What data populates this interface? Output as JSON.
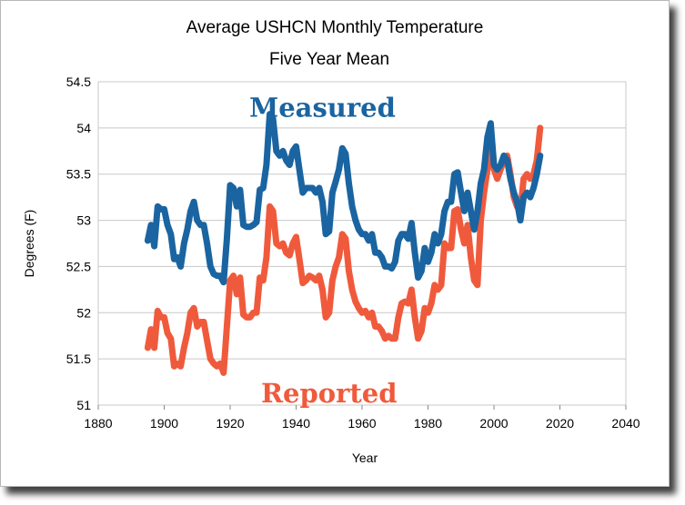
{
  "chart_data": {
    "type": "line",
    "title": "Average USHCN Monthly Temperature",
    "subtitle": "Five Year Mean",
    "xlabel": "Year",
    "ylabel": "Degrees (F)",
    "xlim": [
      1880,
      2040
    ],
    "ylim": [
      51,
      54.5
    ],
    "xticks": [
      "1880",
      "1900",
      "1920",
      "1940",
      "1960",
      "1980",
      "2000",
      "2020",
      "2040"
    ],
    "yticks": [
      "51",
      "51.5",
      "52",
      "52.5",
      "53",
      "53.5",
      "54",
      "54.5"
    ],
    "grid": true,
    "legend": "none",
    "annotations": [
      {
        "text": "Measured",
        "color": "#1a64a1",
        "x": 1948,
        "y": 54.22
      },
      {
        "text": "Reported",
        "color": "#f05a3c",
        "x": 1950,
        "y": 51.13
      }
    ],
    "series": [
      {
        "color": "#1a64a1",
        "x": [
          1895,
          1896,
          1897,
          1898,
          1899,
          1900,
          1901,
          1902,
          1903,
          1904,
          1905,
          1906,
          1907,
          1908,
          1909,
          1910,
          1911,
          1912,
          1913,
          1914,
          1915,
          1916,
          1917,
          1918,
          1919,
          1920,
          1921,
          1922,
          1923,
          1924,
          1925,
          1926,
          1927,
          1928,
          1929,
          1930,
          1931,
          1932,
          1933,
          1934,
          1935,
          1936,
          1937,
          1938,
          1939,
          1940,
          1941,
          1942,
          1943,
          1944,
          1945,
          1946,
          1947,
          1948,
          1949,
          1950,
          1951,
          1952,
          1953,
          1954,
          1955,
          1956,
          1957,
          1958,
          1959,
          1960,
          1961,
          1962,
          1963,
          1964,
          1965,
          1966,
          1967,
          1968,
          1969,
          1970,
          1971,
          1972,
          1973,
          1974,
          1975,
          1976,
          1977,
          1978,
          1979,
          1980,
          1981,
          1982,
          1983,
          1984,
          1985,
          1986,
          1987,
          1988,
          1989,
          1990,
          1991,
          1992,
          1993,
          1994,
          1995,
          1996,
          1997,
          1998,
          1999,
          2000,
          2001,
          2002,
          2003,
          2004,
          2005,
          2006,
          2007,
          2008,
          2009,
          2010,
          2011,
          2012,
          2013,
          2014
        ],
        "values": [
          52.78,
          52.95,
          52.72,
          53.15,
          53.12,
          53.12,
          52.95,
          52.85,
          52.58,
          52.6,
          52.5,
          52.75,
          52.9,
          53.1,
          53.2,
          53.0,
          52.95,
          52.95,
          52.75,
          52.5,
          52.42,
          52.4,
          52.4,
          52.33,
          52.8,
          53.38,
          53.35,
          53.15,
          53.33,
          52.95,
          52.93,
          52.93,
          52.95,
          52.98,
          53.33,
          53.35,
          53.6,
          54.15,
          54.1,
          53.75,
          53.7,
          53.75,
          53.65,
          53.6,
          53.75,
          53.8,
          53.55,
          53.3,
          53.35,
          53.35,
          53.35,
          53.3,
          53.35,
          53.2,
          52.85,
          52.88,
          53.3,
          53.42,
          53.55,
          53.78,
          53.72,
          53.4,
          53.15,
          53.0,
          52.9,
          52.85,
          52.85,
          52.78,
          52.85,
          52.65,
          52.65,
          52.6,
          52.5,
          52.5,
          52.48,
          52.55,
          52.78,
          52.85,
          52.85,
          52.8,
          52.97,
          52.65,
          52.38,
          52.45,
          52.7,
          52.55,
          52.65,
          52.85,
          52.75,
          52.85,
          53.1,
          53.2,
          53.2,
          53.5,
          53.52,
          53.3,
          53.1,
          53.3,
          53.1,
          52.9,
          53.1,
          53.4,
          53.55,
          53.9,
          54.05,
          53.6,
          53.55,
          53.6,
          53.7,
          53.65,
          53.45,
          53.3,
          53.2,
          53.0,
          53.25,
          53.3,
          53.25,
          53.35,
          53.5,
          53.7
        ]
      },
      {
        "color": "#f05a3c",
        "x": [
          1895,
          1896,
          1897,
          1898,
          1899,
          1900,
          1901,
          1902,
          1903,
          1904,
          1905,
          1906,
          1907,
          1908,
          1909,
          1910,
          1911,
          1912,
          1913,
          1914,
          1915,
          1916,
          1917,
          1918,
          1919,
          1920,
          1921,
          1922,
          1923,
          1924,
          1925,
          1926,
          1927,
          1928,
          1929,
          1930,
          1931,
          1932,
          1933,
          1934,
          1935,
          1936,
          1937,
          1938,
          1939,
          1940,
          1941,
          1942,
          1943,
          1944,
          1945,
          1946,
          1947,
          1948,
          1949,
          1950,
          1951,
          1952,
          1953,
          1954,
          1955,
          1956,
          1957,
          1958,
          1959,
          1960,
          1961,
          1962,
          1963,
          1964,
          1965,
          1966,
          1967,
          1968,
          1969,
          1970,
          1971,
          1972,
          1973,
          1974,
          1975,
          1976,
          1977,
          1978,
          1979,
          1980,
          1981,
          1982,
          1983,
          1984,
          1985,
          1986,
          1987,
          1988,
          1989,
          1990,
          1991,
          1992,
          1993,
          1994,
          1995,
          1996,
          1997,
          1998,
          1999,
          2000,
          2001,
          2002,
          2003,
          2004,
          2005,
          2006,
          2007,
          2008,
          2009,
          2010,
          2011,
          2012,
          2013,
          2014
        ],
        "values": [
          51.62,
          51.82,
          51.62,
          52.02,
          51.95,
          51.95,
          51.78,
          51.72,
          51.42,
          51.45,
          51.42,
          51.62,
          51.78,
          52.0,
          52.05,
          51.85,
          51.9,
          51.9,
          51.7,
          51.5,
          51.45,
          51.42,
          51.45,
          51.35,
          51.85,
          52.35,
          52.4,
          52.2,
          52.38,
          51.98,
          51.95,
          51.95,
          52.0,
          52.0,
          52.38,
          52.35,
          52.6,
          53.15,
          53.1,
          52.75,
          52.72,
          52.75,
          52.65,
          52.62,
          52.75,
          52.82,
          52.58,
          52.32,
          52.35,
          52.4,
          52.38,
          52.35,
          52.4,
          52.25,
          51.95,
          52.0,
          52.35,
          52.5,
          52.6,
          52.85,
          52.8,
          52.45,
          52.25,
          52.12,
          52.05,
          52.0,
          52.02,
          51.95,
          52.0,
          51.85,
          51.85,
          51.8,
          51.72,
          51.75,
          51.72,
          51.72,
          51.95,
          52.1,
          52.12,
          52.1,
          52.25,
          51.95,
          51.72,
          51.8,
          52.05,
          52.0,
          52.1,
          52.3,
          52.25,
          52.3,
          52.75,
          52.7,
          52.7,
          53.1,
          53.12,
          52.9,
          52.75,
          52.95,
          52.6,
          52.35,
          52.3,
          53.0,
          53.3,
          53.55,
          53.9,
          53.55,
          53.45,
          53.55,
          53.65,
          53.7,
          53.5,
          53.25,
          53.15,
          53.1,
          53.45,
          53.5,
          53.45,
          53.5,
          53.65,
          54.0
        ]
      }
    ]
  }
}
